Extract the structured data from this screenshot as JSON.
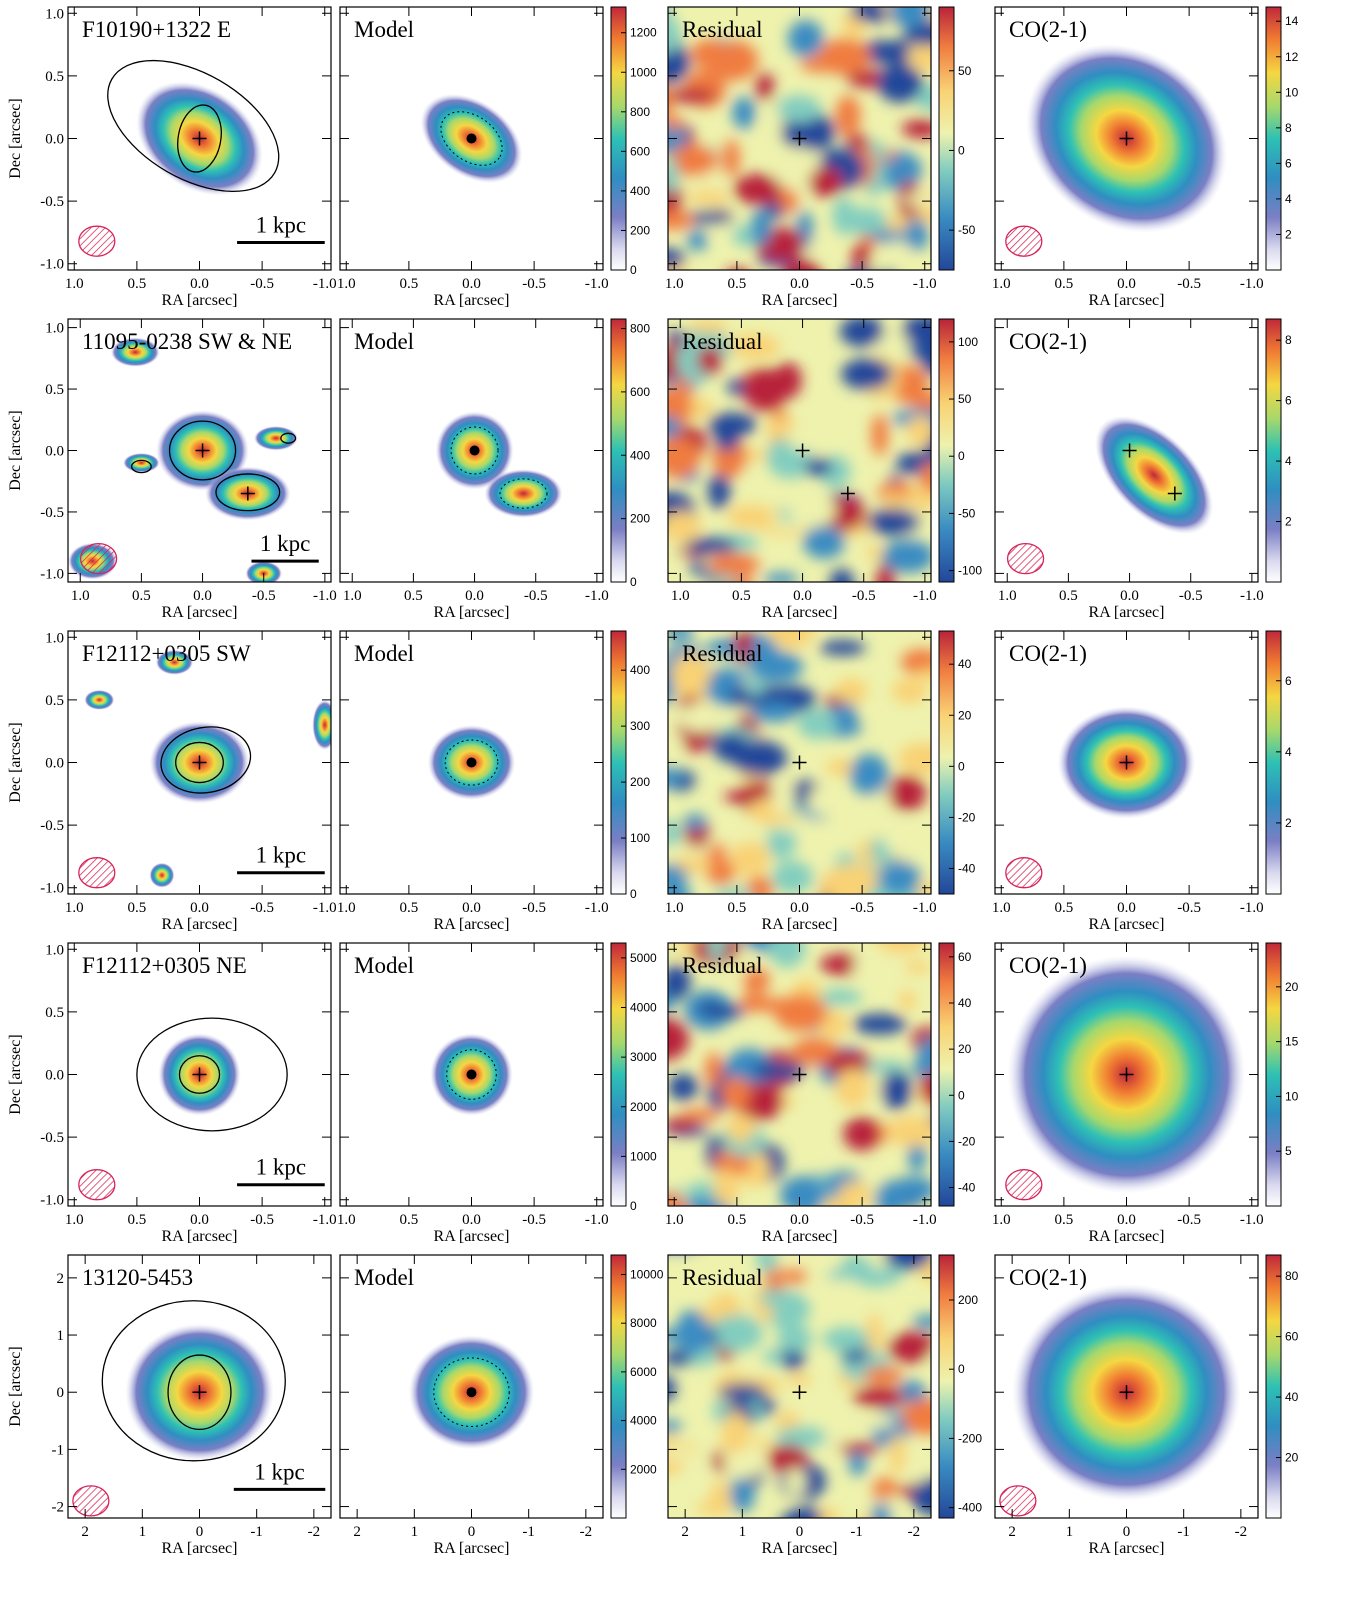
{
  "labels": {
    "model": "Model",
    "residual": "Residual",
    "co": "CO(2-1)",
    "ra": "RA [arcsec]",
    "dec": "Dec [arcsec]",
    "scale": "1 kpc"
  },
  "rows": [
    {
      "target": "F10190+1322 E",
      "ra_lim": [
        1.05,
        -1.05
      ],
      "dec_lim": [
        -1.05,
        1.05
      ],
      "ra_ticks": [
        {
          "value": 1,
          "label": "1.0"
        },
        0.5,
        {
          "value": 0,
          "label": "0.0"
        },
        -0.5,
        {
          "value": -1,
          "label": "-1.0"
        }
      ],
      "dec_ticks": [
        {
          "value": -1,
          "label": "-1.0"
        },
        -0.5,
        {
          "value": 0,
          "label": "0.0"
        },
        0.5,
        {
          "value": 1,
          "label": "1.0"
        }
      ],
      "model_cbar": {
        "lim": [
          0,
          1330
        ],
        "ticks": [
          0,
          200,
          400,
          600,
          800,
          1000,
          1200
        ]
      },
      "residual_cbar": {
        "lim": [
          -75,
          90
        ],
        "ticks": [
          -50,
          0,
          50
        ]
      },
      "co_cbar": {
        "lim": [
          0,
          14.8
        ],
        "ticks": [
          2,
          4,
          6,
          8,
          10,
          12,
          14
        ]
      }
    },
    {
      "target": "11095-0238 SW & NE",
      "ra_lim": [
        1.1,
        -1.05
      ],
      "dec_lim": [
        -1.07,
        1.07
      ],
      "ra_ticks": [
        {
          "value": 1,
          "label": "1.0"
        },
        0.5,
        {
          "value": 0,
          "label": "0.0"
        },
        -0.5,
        {
          "value": -1,
          "label": "-1.0"
        }
      ],
      "dec_ticks": [
        {
          "value": -1,
          "label": "-1.0"
        },
        -0.5,
        {
          "value": 0,
          "label": "0.0"
        },
        0.5,
        {
          "value": 1,
          "label": "1.0"
        }
      ],
      "model_cbar": {
        "lim": [
          0,
          830
        ],
        "ticks": [
          0,
          200,
          400,
          600,
          800
        ]
      },
      "residual_cbar": {
        "lim": [
          -110,
          120
        ],
        "ticks": [
          -100,
          -50,
          0,
          50,
          100
        ]
      },
      "co_cbar": {
        "lim": [
          0,
          8.7
        ],
        "ticks": [
          2,
          4,
          6,
          8
        ]
      }
    },
    {
      "target": "F12112+0305 SW",
      "ra_lim": [
        1.05,
        -1.05
      ],
      "dec_lim": [
        -1.05,
        1.05
      ],
      "ra_ticks": [
        {
          "value": 1,
          "label": "1.0"
        },
        0.5,
        {
          "value": 0,
          "label": "0.0"
        },
        -0.5,
        {
          "value": -1,
          "label": "-1.0"
        }
      ],
      "dec_ticks": [
        {
          "value": -1,
          "label": "-1.0"
        },
        -0.5,
        {
          "value": 0,
          "label": "0.0"
        },
        0.5,
        {
          "value": 1,
          "label": "1.0"
        }
      ],
      "model_cbar": {
        "lim": [
          0,
          470
        ],
        "ticks": [
          0,
          100,
          200,
          300,
          400
        ]
      },
      "residual_cbar": {
        "lim": [
          -50,
          53
        ],
        "ticks": [
          -40,
          -20,
          0,
          20,
          40
        ]
      },
      "co_cbar": {
        "lim": [
          0,
          7.4
        ],
        "ticks": [
          2,
          4,
          6
        ]
      }
    },
    {
      "target": "F12112+0305 NE",
      "ra_lim": [
        1.05,
        -1.05
      ],
      "dec_lim": [
        -1.05,
        1.05
      ],
      "ra_ticks": [
        {
          "value": 1,
          "label": "1.0"
        },
        0.5,
        {
          "value": 0,
          "label": "0.0"
        },
        -0.5,
        {
          "value": -1,
          "label": "-1.0"
        }
      ],
      "dec_ticks": [
        {
          "value": -1,
          "label": "-1.0"
        },
        -0.5,
        {
          "value": 0,
          "label": "0.0"
        },
        0.5,
        {
          "value": 1,
          "label": "1.0"
        }
      ],
      "model_cbar": {
        "lim": [
          0,
          5300
        ],
        "ticks": [
          0,
          1000,
          2000,
          3000,
          4000,
          5000
        ]
      },
      "residual_cbar": {
        "lim": [
          -48,
          66
        ],
        "ticks": [
          -40,
          -20,
          0,
          20,
          40,
          60
        ]
      },
      "co_cbar": {
        "lim": [
          0,
          24
        ],
        "ticks": [
          5,
          10,
          15,
          20
        ]
      }
    },
    {
      "target": "13120-5453",
      "ra_lim": [
        2.3,
        -2.3
      ],
      "dec_lim": [
        -2.2,
        2.4
      ],
      "ra_ticks": [
        2,
        1,
        0,
        -1,
        -2
      ],
      "dec_ticks": [
        -2,
        -1,
        0,
        1,
        2
      ],
      "model_cbar": {
        "lim": [
          0,
          10800
        ],
        "ticks": [
          2000,
          4000,
          6000,
          8000,
          10000
        ]
      },
      "residual_cbar": {
        "lim": [
          -430,
          330
        ],
        "ticks": [
          -400,
          -200,
          0,
          200
        ]
      },
      "co_cbar": {
        "lim": [
          0,
          87
        ],
        "ticks": [
          20,
          40,
          60,
          80
        ]
      }
    }
  ]
}
